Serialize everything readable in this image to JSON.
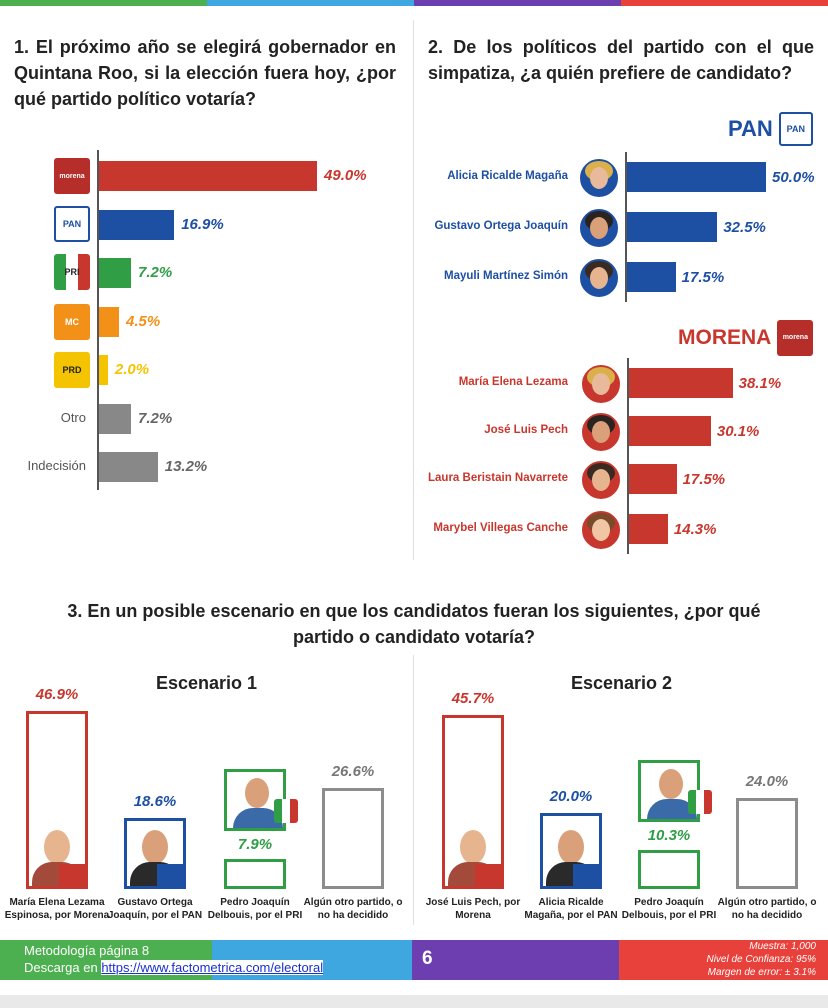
{
  "colors": {
    "morena": "#c8372d",
    "pan": "#1d4fa3",
    "pri": "#2f9e45",
    "mc": "#f39018",
    "prd": "#f5c400",
    "gray": "#888888",
    "outline": "#8c8c8c"
  },
  "header_strip": [
    "#4caf50",
    "#3ea7e0",
    "#6d3eb0",
    "#e8413b"
  ],
  "q1": {
    "title": "1. El próximo año se elegirá gobernador en Quintana Roo, si la elección fuera hoy, ¿por qué partido político votaría?",
    "logos": {
      "morena": "morena",
      "pan": "PAN",
      "pri": "PRI",
      "mc": "MC",
      "prd": "PRD"
    },
    "labels": {
      "otro": "Otro",
      "indecision": "Indecisión"
    }
  },
  "q2": {
    "title": "2. De los políticos del partido con el que simpatiza, ¿a quién prefiere de candidato?",
    "pan_header": "PAN",
    "pan_logo": "PAN",
    "morena_header": "MORENA",
    "morena_logo": "morena"
  },
  "q3": {
    "title": "3. En un posible escenario en que los candidatos fueran los siguientes, ¿por qué partido o candidato votaría?",
    "s1_title": "Escenario 1",
    "s2_title": "Escenario 2"
  },
  "chart_data": [
    {
      "type": "bar",
      "orientation": "horizontal",
      "title": "1. El próximo año se elegirá gobernador en Quintana Roo, si la elección fuera hoy, ¿por qué partido político votaría?",
      "categories": [
        "MORENA",
        "PAN",
        "PRI",
        "MC",
        "PRD",
        "Otro",
        "Indecisión"
      ],
      "values": [
        49.0,
        16.9,
        7.2,
        4.5,
        2.0,
        7.2,
        13.2
      ],
      "labels": [
        "49.0%",
        "16.9%",
        "7.2%",
        "4.5%",
        "2.0%",
        "7.2%",
        "13.2%"
      ],
      "colors": [
        "#c8372d",
        "#1d4fa3",
        "#2f9e45",
        "#f39018",
        "#f5c400",
        "#888888",
        "#888888"
      ]
    },
    {
      "type": "bar",
      "orientation": "horizontal",
      "group": "PAN",
      "categories": [
        "Alicia Ricalde Magaña",
        "Gustavo Ortega Joaquín",
        "Mayuli Martínez Simón"
      ],
      "values": [
        50.0,
        32.5,
        17.5
      ],
      "labels": [
        "50.0%",
        "32.5%",
        "17.5%"
      ]
    },
    {
      "type": "bar",
      "orientation": "horizontal",
      "group": "MORENA",
      "categories": [
        "María Elena Lezama",
        "José Luis Pech",
        "Laura Beristain Navarrete",
        "Marybel Villegas Canche"
      ],
      "values": [
        38.1,
        30.1,
        17.5,
        14.3
      ],
      "labels": [
        "38.1%",
        "30.1%",
        "17.5%",
        "14.3%"
      ]
    },
    {
      "type": "bar",
      "orientation": "vertical",
      "title": "Escenario 1",
      "categories": [
        "María Elena Lezama Espinosa, por Morena",
        "Gustavo Ortega Joaquín, por el PAN",
        "Pedro Joaquín Delbouis, por el PRI",
        "Algún otro partido, o no ha decidido"
      ],
      "values": [
        46.9,
        18.6,
        7.9,
        26.6
      ],
      "labels": [
        "46.9%",
        "18.6%",
        "7.9%",
        "26.6%"
      ]
    },
    {
      "type": "bar",
      "orientation": "vertical",
      "title": "Escenario 2",
      "categories": [
        "José Luis Pech, por Morena",
        "Alicia Ricalde Magaña, por el PAN",
        "Pedro Joaquín Delbouis, por el PRI",
        "Algún otro partido, o no ha decidido"
      ],
      "values": [
        45.7,
        20.0,
        10.3,
        24.0
      ],
      "labels": [
        "45.7%",
        "20.0%",
        "10.3%",
        "24.0%"
      ]
    }
  ],
  "footer": {
    "metodologia": "Metodología página 8",
    "descarga_prefix": "Descarga en ",
    "descarga_link": "https://www.factometrica.com/electoral",
    "page_number": "6",
    "muestra": "Muestra: 1,000",
    "confianza": "Nivel de Confianza: 95%",
    "margen": "Margen de error: ± 3.1%",
    "colors": [
      "#4caf50",
      "#3ea7e0",
      "#6d3eb0",
      "#e8413b"
    ]
  }
}
